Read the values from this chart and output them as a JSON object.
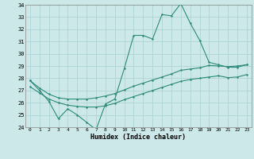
{
  "xlabel": "Humidex (Indice chaleur)",
  "line_color": "#2e8b7a",
  "bg_color": "#cde8e8",
  "grid_color": "#aed4d4",
  "ylim": [
    24,
    34
  ],
  "yticks": [
    24,
    25,
    26,
    27,
    28,
    29,
    30,
    31,
    32,
    33,
    34
  ],
  "xticks": [
    0,
    1,
    2,
    3,
    4,
    5,
    6,
    7,
    8,
    9,
    10,
    11,
    12,
    13,
    14,
    15,
    16,
    17,
    18,
    19,
    20,
    21,
    22,
    23
  ],
  "jagged": [
    27.8,
    27.0,
    26.1,
    24.7,
    25.5,
    25.0,
    24.4,
    23.8,
    25.9,
    26.3,
    28.8,
    31.5,
    31.5,
    31.2,
    33.2,
    33.1,
    34.1,
    32.5,
    31.1,
    29.3,
    29.1,
    28.9,
    28.9,
    29.1
  ],
  "upper": [
    27.8,
    27.2,
    26.7,
    26.4,
    26.3,
    26.3,
    26.3,
    26.4,
    26.55,
    26.75,
    27.05,
    27.35,
    27.6,
    27.85,
    28.1,
    28.35,
    28.65,
    28.75,
    28.85,
    29.05,
    29.0,
    28.95,
    29.0,
    29.1
  ],
  "lower": [
    27.3,
    26.8,
    26.3,
    26.0,
    25.8,
    25.7,
    25.65,
    25.65,
    25.75,
    25.95,
    26.25,
    26.5,
    26.75,
    27.0,
    27.25,
    27.5,
    27.75,
    27.9,
    28.0,
    28.1,
    28.2,
    28.05,
    28.1,
    28.3
  ]
}
